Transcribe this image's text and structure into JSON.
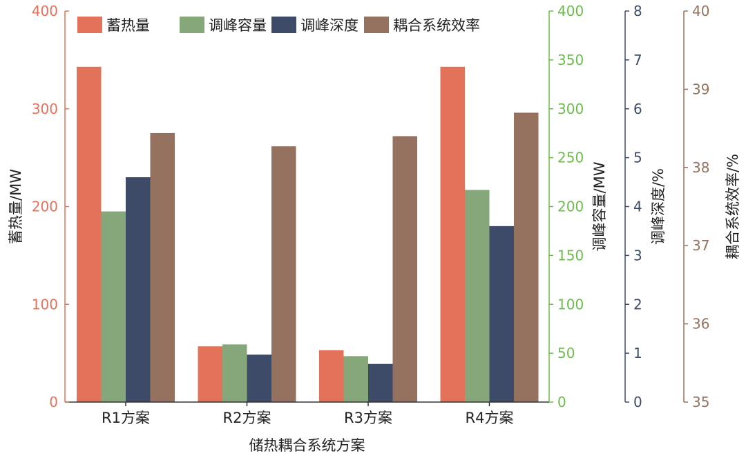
{
  "chart_data": {
    "type": "bar",
    "title": "",
    "xlabel": "储热耦合系统方案",
    "categories": [
      "R1方案",
      "R2方案",
      "R3方案",
      "R4方案"
    ],
    "series": [
      {
        "name": "蓄热量",
        "axis": "left",
        "color": "#E2735A",
        "values": [
          343,
          57,
          53,
          343
        ]
      },
      {
        "name": "调峰容量",
        "axis": "right1",
        "color": "#86A77A",
        "values": [
          195,
          59,
          47,
          217
        ]
      },
      {
        "name": "调峰深度",
        "axis": "right2",
        "color": "#3D4B68",
        "values": [
          4.6,
          0.97,
          0.78,
          3.6
        ]
      },
      {
        "name": "耦合系统效率",
        "axis": "right3",
        "color": "#94725F",
        "values": [
          38.44,
          38.27,
          38.4,
          38.7
        ]
      }
    ],
    "axes": {
      "left": {
        "label": "蓄热量/MW",
        "ylim": [
          0,
          400
        ],
        "ticks": [
          "0",
          "100",
          "200",
          "300",
          "400"
        ],
        "color": "#E2735A"
      },
      "right1": {
        "label": "调峰容量/MW",
        "ylim": [
          0,
          400
        ],
        "ticks": [
          "0",
          "50",
          "100",
          "150",
          "200",
          "250",
          "300",
          "350",
          "400"
        ],
        "color": "#6DBB4F"
      },
      "right2": {
        "label": "调峰深度/%",
        "ylim": [
          0,
          8
        ],
        "ticks": [
          "0",
          "1",
          "2",
          "3",
          "4",
          "5",
          "6",
          "7",
          "8"
        ],
        "color": "#3D4B68"
      },
      "right3": {
        "label": "耦合系统效率/%",
        "ylim": [
          35,
          40
        ],
        "ticks": [
          "35",
          "36",
          "37",
          "38",
          "39",
          "40"
        ],
        "color": "#94725F"
      }
    },
    "legend": "top",
    "grid": false
  }
}
